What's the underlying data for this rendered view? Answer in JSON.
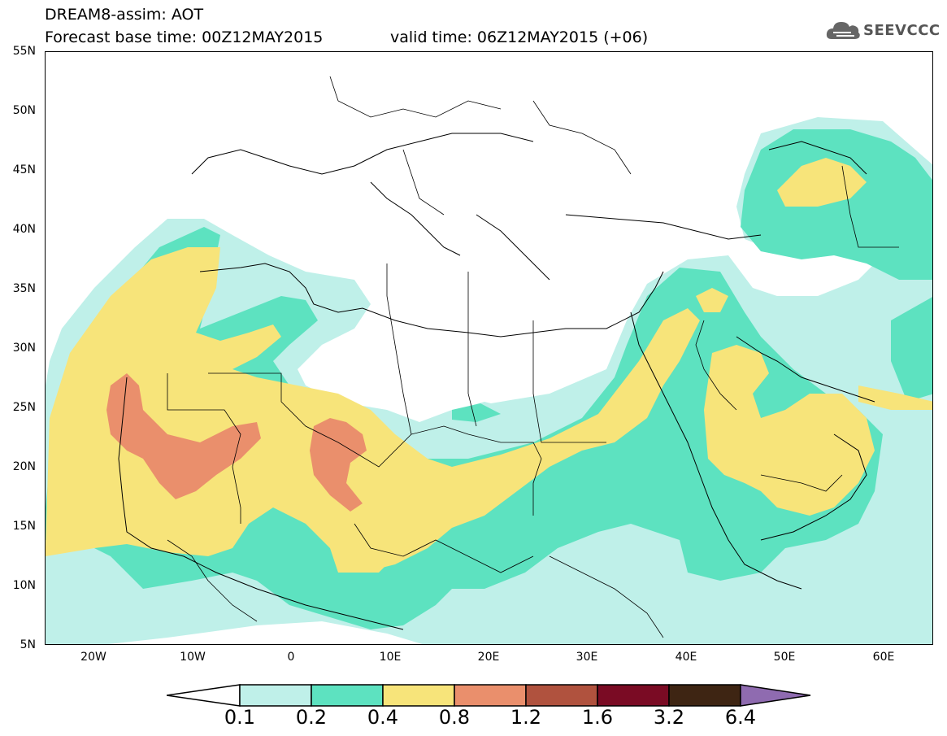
{
  "header": {
    "title": "DREAM8-assim: AOT",
    "base_time": "Forecast base time: 00Z12MAY2015",
    "valid_time": "valid time: 06Z12MAY2015 (+06)"
  },
  "logo": {
    "text": "SEEVCCC",
    "icon": "cloud-icon"
  },
  "map": {
    "lat_labels": [
      "55N",
      "50N",
      "45N",
      "40N",
      "35N",
      "30N",
      "25N",
      "20N",
      "15N",
      "10N",
      "5N"
    ],
    "lon_labels": [
      "20W",
      "10W",
      "0",
      "10E",
      "20E",
      "30E",
      "40E",
      "50E",
      "60E"
    ],
    "lon_range": [
      -25,
      65
    ],
    "lat_range": [
      5,
      55
    ]
  },
  "colorbar": {
    "labels": [
      "0.1",
      "0.2",
      "0.4",
      "0.8",
      "1.2",
      "1.6",
      "3.2",
      "6.4"
    ],
    "colors": [
      "#ffffff",
      "#bff0e9",
      "#5de2c0",
      "#f7e47a",
      "#ea8f6c",
      "#b0523e",
      "#7a0b24",
      "#3e2513",
      "#8f6bb0"
    ]
  }
}
